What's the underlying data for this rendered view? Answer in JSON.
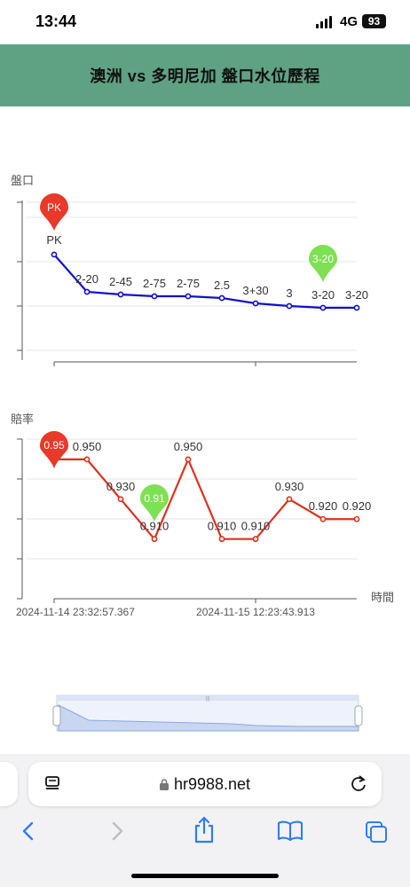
{
  "status_bar": {
    "time": "13:44",
    "network": "4G",
    "battery": "93"
  },
  "header": {
    "title": "澳洲 vs 多明尼加 盤口水位歷程"
  },
  "colors": {
    "header_bg": "#5fa183",
    "handicap_line": "#1010cc",
    "odds_line": "#e0301e",
    "max_pin": "#e8392a",
    "min_pin": "#7ee053",
    "link_blue": "#2f7cf6"
  },
  "chart_data": [
    {
      "type": "line",
      "ylabel": "盤口",
      "series": [
        {
          "labels": [
            "PK",
            "2-20",
            "2-45",
            "2-75",
            "2-75",
            "2.5",
            "3+30",
            "3",
            "3-20",
            "3-20"
          ]
        }
      ],
      "markers": {
        "max": "PK",
        "min": "3-20"
      },
      "grid": true
    },
    {
      "type": "line",
      "ylabel": "賠率",
      "xlabel": "時間",
      "x_ticks": [
        "2024-11-14 23:32:57.367",
        "2024-11-15 12:23:43.913"
      ],
      "series": [
        {
          "values": [
            0.95,
            0.95,
            0.93,
            0.91,
            0.95,
            0.91,
            0.91,
            0.93,
            0.92,
            0.92
          ],
          "labels": [
            "0.950",
            "0.950",
            "0.930",
            "0.910",
            "0.950",
            "0.910",
            "0.910",
            "0.930",
            "0.920",
            "0.920"
          ]
        }
      ],
      "markers": {
        "max": "0.95",
        "min": "0.91"
      },
      "ylim": [
        0.88,
        0.97
      ],
      "grid": true
    }
  ],
  "browser": {
    "url": "hr9988.net"
  },
  "icons": [
    "reader-icon",
    "lock-icon",
    "reload-icon",
    "back-icon",
    "forward-icon",
    "share-icon",
    "bookmarks-icon",
    "tabs-icon",
    "zoom-handle-icon"
  ]
}
